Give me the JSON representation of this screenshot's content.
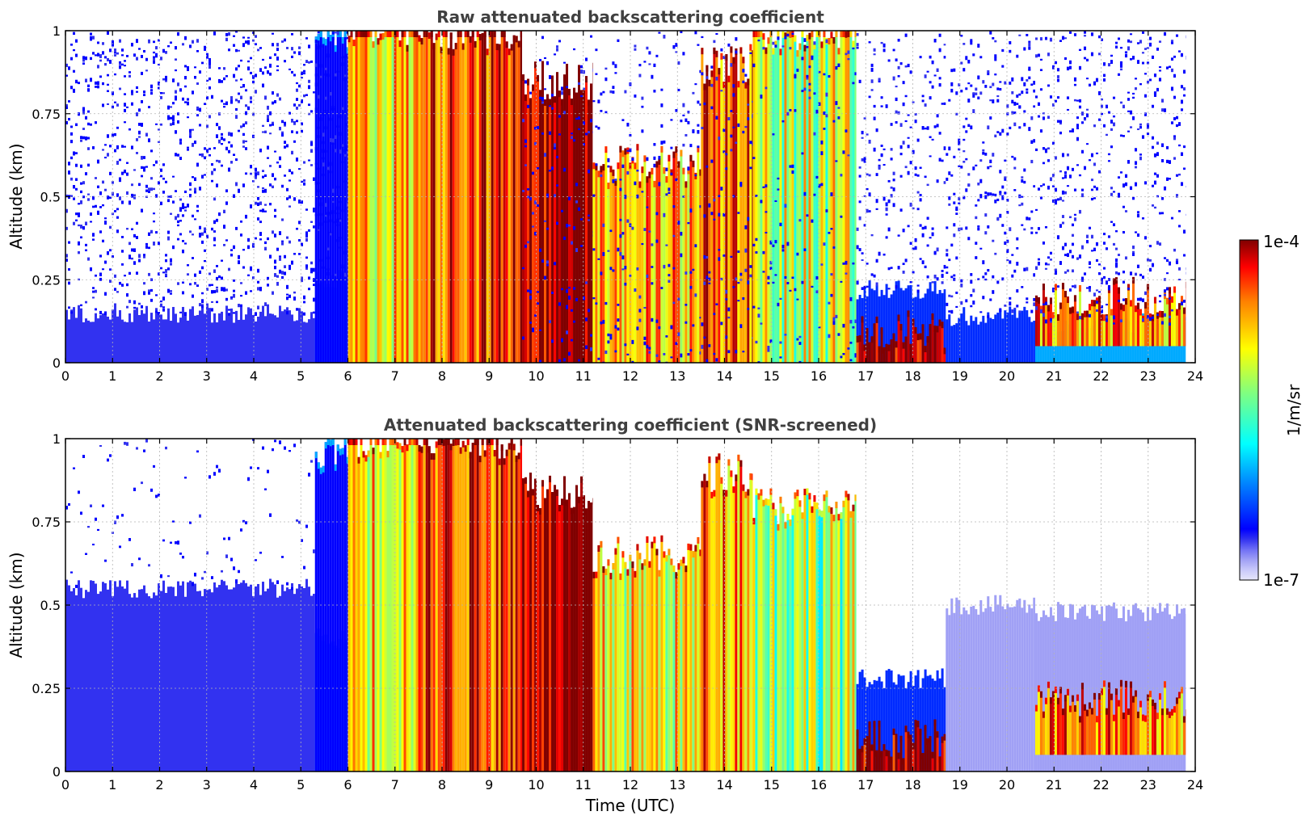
{
  "figure": {
    "colorbar": {
      "label": "1/m/sr",
      "max_label": "1e-4",
      "min_label": "1e-7",
      "scale": "log",
      "range": [
        1e-07,
        0.0001
      ],
      "colormap": "jet",
      "low_end_colors": [
        "#e6e6fa",
        "#c8c8fa",
        "#a0a0f5",
        "#6e6ef5",
        "#3232f0",
        "#0000ff"
      ]
    }
  },
  "chart_data": [
    {
      "type": "heatmap",
      "title": "Raw attenuated backscattering coefficient",
      "xlabel": "",
      "ylabel": "Altitude (km)",
      "xlim": [
        0,
        24
      ],
      "ylim": [
        0,
        1
      ],
      "xticks": [
        "0",
        "1",
        "2",
        "3",
        "4",
        "5",
        "6",
        "7",
        "8",
        "9",
        "10",
        "11",
        "12",
        "13",
        "14",
        "15",
        "16",
        "17",
        "18",
        "19",
        "20",
        "21",
        "22",
        "23",
        "24"
      ],
      "yticks": [
        "0",
        "0.25",
        "0.5",
        "0.75",
        "1"
      ],
      "grid": true,
      "data_end_time": 23.8,
      "profiles": [
        {
          "t": [
            0.0,
            5.3
          ],
          "surface_layer_top": 0.15,
          "surface_level": 0.75,
          "cloud_bottom": null,
          "cloud_top": null,
          "cloud_level": null,
          "upper_noise": 0.55
        },
        {
          "t": [
            5.3,
            6.0
          ],
          "surface_layer_top": 0.25,
          "surface_level": 1.2,
          "cloud_bottom": 0.0,
          "cloud_top": 1.0,
          "cloud_level": 0.55,
          "upper_noise": 0.5
        },
        {
          "t": [
            6.0,
            7.6
          ],
          "surface_layer_top": 0.0,
          "surface_level": 0.0,
          "cloud_bottom": 0.0,
          "cloud_top": 1.0,
          "cloud_level": 2.3,
          "upper_noise": 0.0
        },
        {
          "t": [
            7.6,
            9.7
          ],
          "surface_layer_top": 0.0,
          "surface_level": 0.0,
          "cloud_bottom": 0.0,
          "cloud_top": 1.0,
          "cloud_level": 2.7,
          "upper_noise": 0.0
        },
        {
          "t": [
            9.7,
            11.2
          ],
          "surface_layer_top": 0.0,
          "surface_level": 0.0,
          "cloud_bottom": 0.0,
          "cloud_top": 0.85,
          "cloud_level": 3.0,
          "upper_noise": 0.25
        },
        {
          "t": [
            11.2,
            13.5
          ],
          "surface_layer_top": 0.0,
          "surface_level": 0.0,
          "cloud_bottom": 0.0,
          "cloud_top": 0.6,
          "cloud_level": 2.4,
          "upper_noise": 0.3
        },
        {
          "t": [
            13.5,
            14.6
          ],
          "surface_layer_top": 0.0,
          "surface_level": 0.0,
          "cloud_bottom": 0.0,
          "cloud_top": 0.9,
          "cloud_level": 2.6,
          "upper_noise": 0.25
        },
        {
          "t": [
            14.6,
            16.8
          ],
          "surface_layer_top": 0.0,
          "surface_level": 0.0,
          "cloud_bottom": 0.0,
          "cloud_top": 1.0,
          "cloud_level": 2.1,
          "upper_noise": 0.2
        },
        {
          "t": [
            16.8,
            18.7
          ],
          "surface_layer_top": 0.22,
          "surface_level": 1.1,
          "cloud_bottom": 0.0,
          "cloud_top": 0.1,
          "cloud_level": 3.0,
          "upper_noise": 0.35
        },
        {
          "t": [
            18.7,
            20.6
          ],
          "surface_layer_top": 0.14,
          "surface_level": 1.1,
          "cloud_bottom": null,
          "cloud_top": null,
          "cloud_level": null,
          "upper_noise": 0.45
        },
        {
          "t": [
            20.6,
            23.8
          ],
          "surface_layer_top": 0.12,
          "surface_level": 1.4,
          "cloud_bottom": 0.05,
          "cloud_top": 0.2,
          "cloud_level": 2.5,
          "upper_noise": 0.45
        }
      ]
    },
    {
      "type": "heatmap",
      "title": "Attenuated backscattering coefficient (SNR-screened)",
      "xlabel": "Time (UTC)",
      "ylabel": "Altitude (km)",
      "xlim": [
        0,
        24
      ],
      "ylim": [
        0,
        1
      ],
      "xticks": [
        "0",
        "1",
        "2",
        "3",
        "4",
        "5",
        "6",
        "7",
        "8",
        "9",
        "10",
        "11",
        "12",
        "13",
        "14",
        "15",
        "16",
        "17",
        "18",
        "19",
        "20",
        "21",
        "22",
        "23",
        "24"
      ],
      "yticks": [
        "0",
        "0.25",
        "0.5",
        "0.75",
        "1"
      ],
      "grid": true,
      "data_end_time": 23.8,
      "profiles": [
        {
          "t": [
            0.0,
            5.3
          ],
          "surface_layer_top": 0.55,
          "surface_level": 0.75,
          "cloud_bottom": null,
          "cloud_top": null,
          "cloud_level": null,
          "upper_noise": 0.03
        },
        {
          "t": [
            5.3,
            6.0
          ],
          "surface_layer_top": 0.4,
          "surface_level": 1.2,
          "cloud_bottom": 0.0,
          "cloud_top": 0.95,
          "cloud_level": 0.6,
          "upper_noise": 0.0
        },
        {
          "t": [
            6.0,
            7.6
          ],
          "surface_layer_top": 0.0,
          "surface_level": 0.0,
          "cloud_bottom": 0.0,
          "cloud_top": 1.0,
          "cloud_level": 2.3,
          "upper_noise": 0.0
        },
        {
          "t": [
            7.6,
            9.7
          ],
          "surface_layer_top": 0.0,
          "surface_level": 0.0,
          "cloud_bottom": 0.0,
          "cloud_top": 1.0,
          "cloud_level": 2.7,
          "upper_noise": 0.0
        },
        {
          "t": [
            9.7,
            11.2
          ],
          "surface_layer_top": 0.0,
          "surface_level": 0.0,
          "cloud_bottom": 0.0,
          "cloud_top": 0.85,
          "cloud_level": 3.0,
          "upper_noise": 0.0
        },
        {
          "t": [
            11.2,
            13.5
          ],
          "surface_layer_top": 0.0,
          "surface_level": 0.0,
          "cloud_bottom": 0.0,
          "cloud_top": 0.65,
          "cloud_level": 2.2,
          "upper_noise": 0.0
        },
        {
          "t": [
            13.5,
            14.6
          ],
          "surface_layer_top": 0.0,
          "surface_level": 0.0,
          "cloud_bottom": 0.0,
          "cloud_top": 0.9,
          "cloud_level": 2.5,
          "upper_noise": 0.0
        },
        {
          "t": [
            14.6,
            16.8
          ],
          "surface_layer_top": 0.0,
          "surface_level": 0.0,
          "cloud_bottom": 0.0,
          "cloud_top": 0.8,
          "cloud_level": 2.0,
          "upper_noise": 0.0
        },
        {
          "t": [
            16.8,
            18.7
          ],
          "surface_layer_top": 0.28,
          "surface_level": 1.1,
          "cloud_bottom": 0.0,
          "cloud_top": 0.1,
          "cloud_level": 3.0,
          "upper_noise": 0.0
        },
        {
          "t": [
            18.7,
            20.6
          ],
          "surface_layer_top": 0.5,
          "surface_level": 0.4,
          "cloud_bottom": null,
          "cloud_top": null,
          "cloud_level": null,
          "upper_noise": 0.02
        },
        {
          "t": [
            20.6,
            23.8
          ],
          "surface_layer_top": 0.48,
          "surface_level": 0.35,
          "cloud_bottom": 0.05,
          "cloud_top": 0.22,
          "cloud_level": 2.5,
          "upper_noise": 0.02
        }
      ]
    }
  ]
}
